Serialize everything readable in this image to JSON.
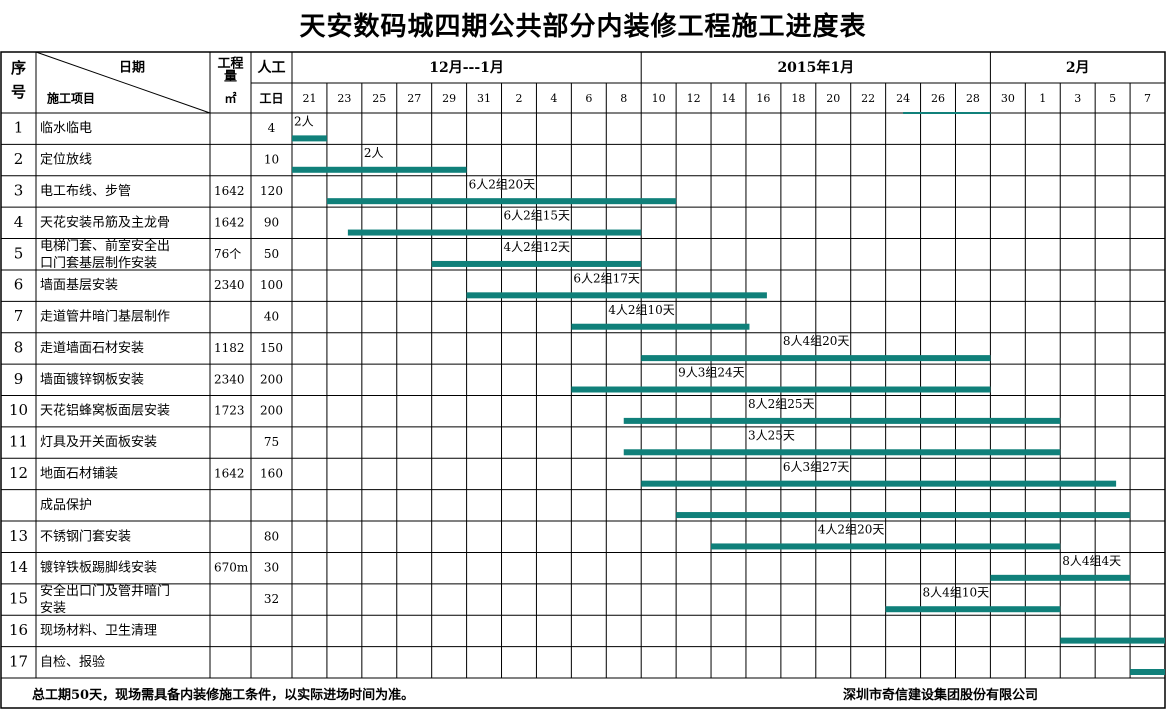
{
  "title": "天安数码城四期公共部分内装修工程施工进度表",
  "header": {
    "seq": "序号",
    "date_label": "日期",
    "item_label": "施工项目",
    "qty_label": "工程量",
    "qty_unit": "㎡",
    "labor_label": "人工",
    "labor_unit": "工日",
    "months": [
      "12月---1月",
      "2015年1月",
      "2月"
    ]
  },
  "dates": [
    "21",
    "23",
    "25",
    "27",
    "29",
    "31",
    "2",
    "4",
    "6",
    "8",
    "10",
    "12",
    "14",
    "16",
    "18",
    "20",
    "22",
    "24",
    "26",
    "28",
    "30",
    "1",
    "3",
    "5",
    "7"
  ],
  "bar_color": "#10807a",
  "rows": [
    {
      "seq": "1",
      "name": "临水临电",
      "qty": "",
      "labor": "4",
      "note": "2人",
      "bars": [
        [
          0,
          1
        ]
      ],
      "note_col": 0
    },
    {
      "seq": "2",
      "name": "定位放线",
      "qty": "",
      "labor": "10",
      "note": "2人",
      "bars": [
        [
          0,
          5
        ]
      ],
      "note_col": 2
    },
    {
      "seq": "3",
      "name": "电工布线、步管",
      "qty": "1642",
      "labor": "120",
      "note": "6人2组20天",
      "bars": [
        [
          1,
          11
        ]
      ],
      "note_col": 5
    },
    {
      "seq": "4",
      "name": "天花安装吊筋及主龙骨",
      "qty": "1642",
      "labor": "90",
      "note": "6人2组15天",
      "bars": [
        [
          1.6,
          10
        ]
      ],
      "note_col": 6
    },
    {
      "seq": "5",
      "name": "电梯门套、前室安全出口门套基层制作安装",
      "qty": "76个",
      "labor": "50",
      "note": "4人2组12天",
      "bars": [
        [
          4,
          10
        ]
      ],
      "note_col": 6
    },
    {
      "seq": "6",
      "name": "墙面基层安装",
      "qty": "2340",
      "labor": "100",
      "note": "6人2组17天",
      "bars": [
        [
          5,
          13.6
        ]
      ],
      "note_col": 8
    },
    {
      "seq": "7",
      "name": "走道管井暗门基层制作",
      "qty": "",
      "labor": "40",
      "note": "4人2组10天",
      "bars": [
        [
          8,
          13.1
        ]
      ],
      "note_col": 9
    },
    {
      "seq": "8",
      "name": "走道墙面石材安装",
      "qty": "1182",
      "labor": "150",
      "note": "8人4组20天",
      "bars": [
        [
          10,
          20
        ]
      ],
      "note_col": 14
    },
    {
      "seq": "9",
      "name": "墙面镀锌钢板安装",
      "qty": "2340",
      "labor": "200",
      "note": "9人3组24天",
      "bars": [
        [
          8,
          20
        ]
      ],
      "note_col": 11
    },
    {
      "seq": "10",
      "name": "天花铝蜂窝板面层安装",
      "qty": "1723",
      "labor": "200",
      "note": "8人2组25天",
      "bars": [
        [
          9.5,
          22
        ]
      ],
      "note_col": 13
    },
    {
      "seq": "11",
      "name": "灯具及开关面板安装",
      "qty": "",
      "labor": "75",
      "note": "3人25天",
      "bars": [
        [
          9.5,
          22
        ]
      ],
      "note_col": 13
    },
    {
      "seq": "12",
      "name": "地面石材铺装",
      "qty": "1642",
      "labor": "160",
      "note": "6人3组27天",
      "bars": [
        [
          10,
          23.6
        ]
      ],
      "note_col": 14
    },
    {
      "seq": "",
      "name": "成品保护",
      "qty": "",
      "labor": "",
      "note": "",
      "bars": [
        [
          11,
          24
        ]
      ],
      "note_col": 0
    },
    {
      "seq": "13",
      "name": "不锈钢门套安装",
      "qty": "",
      "labor": "80",
      "note": "4人2组20天",
      "bars": [
        [
          12,
          22
        ]
      ],
      "note_col": 15
    },
    {
      "seq": "14",
      "name": "镀锌铁板踢脚线安装",
      "qty": "670m",
      "labor": "30",
      "note": "8人4组4天",
      "bars": [
        [
          20,
          24
        ]
      ],
      "note_col": 22
    },
    {
      "seq": "15",
      "name": "安全出口门及管井暗门安装",
      "qty": "",
      "labor": "32",
      "note": "8人4组10天",
      "bars": [
        [
          17,
          22
        ]
      ],
      "note_col": 18
    },
    {
      "seq": "16",
      "name": "现场材料、卫生清理",
      "qty": "",
      "labor": "",
      "note": "",
      "bars": [
        [
          22,
          25
        ]
      ],
      "note_col": 0
    },
    {
      "seq": "17",
      "name": "自检、报验",
      "qty": "",
      "labor": "",
      "note": "",
      "bars": [
        [
          24,
          25
        ]
      ],
      "note_col": 0
    }
  ],
  "footer": {
    "left": "总工期50天，现场需具备内装修施工条件，以实际进场时间为准。",
    "right": "深圳市奇信建设集团股份有限公司"
  }
}
